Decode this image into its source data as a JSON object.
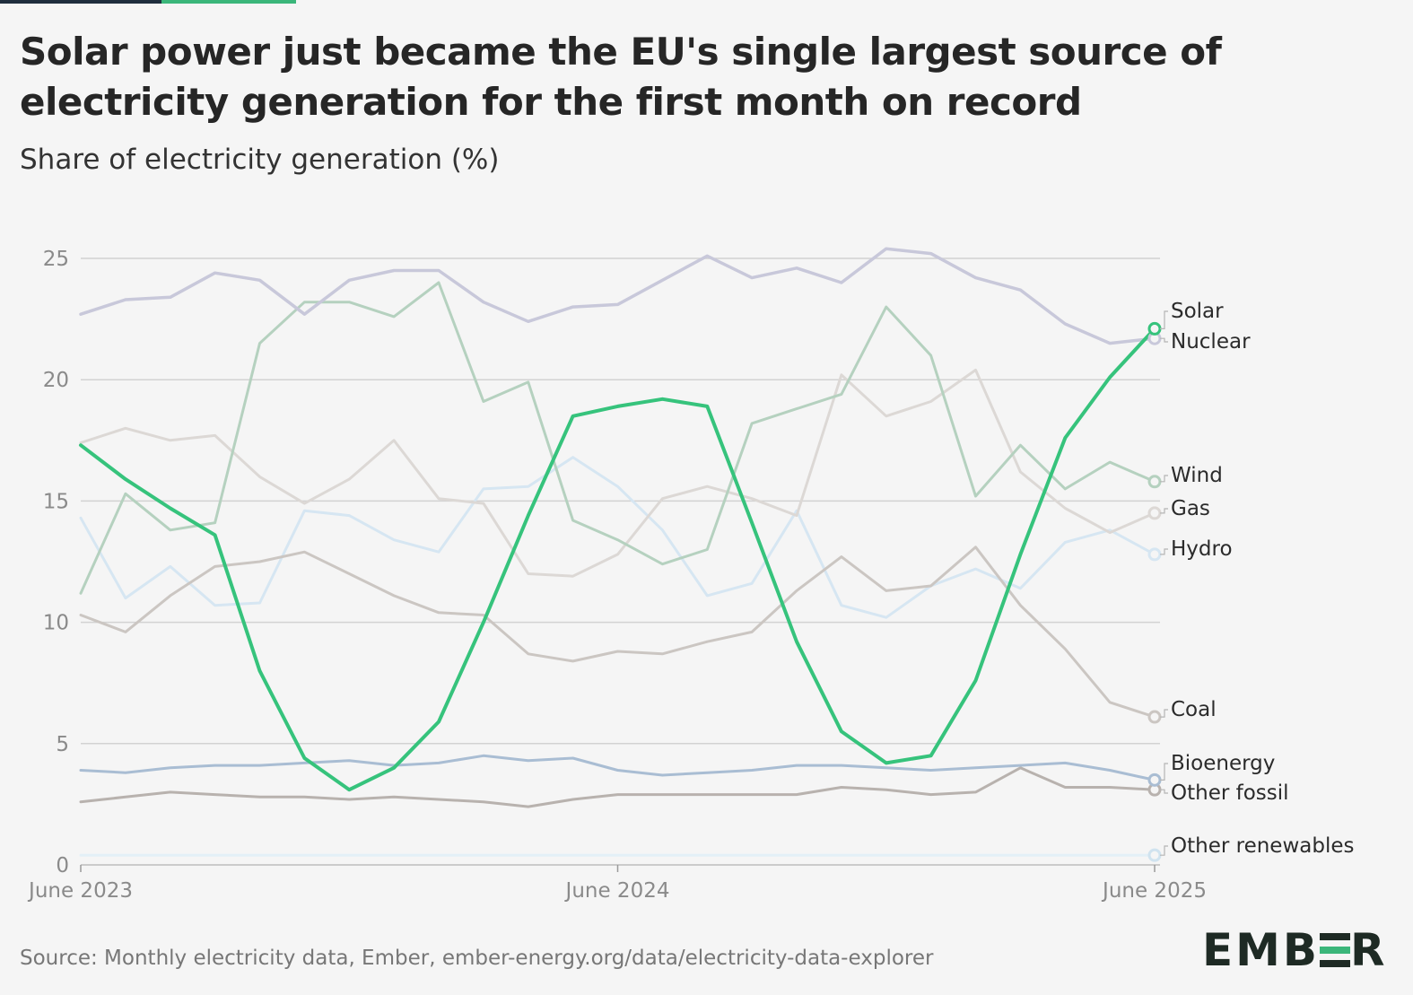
{
  "title": "Solar power just became the EU's single largest source of electricity generation for the first month on record",
  "subtitle": "Share of electricity generation (%)",
  "source": "Source: Monthly electricity data, Ember, ember-energy.org/data/electricity-data-explorer",
  "logo": {
    "left": "EMB",
    "right": "R"
  },
  "chart_data": {
    "type": "line",
    "x": [
      "2023-06",
      "2023-07",
      "2023-08",
      "2023-09",
      "2023-10",
      "2023-11",
      "2023-12",
      "2024-01",
      "2024-02",
      "2024-03",
      "2024-04",
      "2024-05",
      "2024-06",
      "2024-07",
      "2024-08",
      "2024-09",
      "2024-10",
      "2024-11",
      "2024-12",
      "2025-01",
      "2025-02",
      "2025-03",
      "2025-04",
      "2025-05",
      "2025-06"
    ],
    "x_tick_labels": [
      "June 2023",
      "June 2024",
      "June 2025"
    ],
    "y_ticks": [
      "0",
      "5",
      "10",
      "15",
      "20",
      "25"
    ],
    "ylim": [
      0,
      25
    ],
    "ylabel": "Share of electricity generation (%)",
    "grid": "horizontal",
    "legend": "direct labels at right end of lines",
    "series": [
      {
        "name": "Other renewables",
        "color": "#e3f0f7",
        "width": 3,
        "values": [
          0.4,
          0.4,
          0.4,
          0.4,
          0.4,
          0.4,
          0.4,
          0.4,
          0.4,
          0.4,
          0.4,
          0.4,
          0.4,
          0.4,
          0.4,
          0.4,
          0.4,
          0.4,
          0.4,
          0.4,
          0.4,
          0.4,
          0.4,
          0.4,
          0.4
        ]
      },
      {
        "name": "Other fossil",
        "color": "#b8b2ae",
        "width": 3,
        "values": [
          2.6,
          2.8,
          3.0,
          2.9,
          2.8,
          2.8,
          2.7,
          2.8,
          2.7,
          2.6,
          2.4,
          2.7,
          2.9,
          2.9,
          2.9,
          2.9,
          2.9,
          3.2,
          3.1,
          2.9,
          3.0,
          4.0,
          3.2,
          3.2,
          3.1
        ]
      },
      {
        "name": "Bioenergy",
        "color": "#a9bdd3",
        "width": 3,
        "values": [
          3.9,
          3.8,
          4.0,
          4.1,
          4.1,
          4.2,
          4.3,
          4.1,
          4.2,
          4.5,
          4.3,
          4.4,
          3.9,
          3.7,
          3.8,
          3.9,
          4.1,
          4.1,
          4.0,
          3.9,
          4.0,
          4.1,
          4.2,
          3.9,
          3.5
        ]
      },
      {
        "name": "Hydro",
        "color": "#d6e6f2",
        "width": 3,
        "values": [
          14.3,
          11.0,
          12.3,
          10.7,
          10.8,
          14.6,
          14.4,
          13.4,
          12.9,
          15.5,
          15.6,
          16.8,
          15.6,
          13.8,
          11.1,
          11.6,
          14.6,
          10.7,
          10.2,
          11.5,
          12.2,
          11.4,
          13.3,
          13.8,
          12.8
        ]
      },
      {
        "name": "Coal",
        "color": "#cbc6c2",
        "width": 3,
        "values": [
          10.3,
          9.6,
          11.1,
          12.3,
          12.5,
          12.9,
          12.0,
          11.1,
          10.4,
          10.3,
          8.7,
          8.4,
          8.8,
          8.7,
          9.2,
          9.6,
          11.3,
          12.7,
          11.3,
          11.5,
          13.1,
          10.7,
          8.9,
          6.7,
          6.1
        ]
      },
      {
        "name": "Gas",
        "color": "#dcd8d5",
        "width": 3,
        "values": [
          17.4,
          18.0,
          17.5,
          17.7,
          16.0,
          14.9,
          15.9,
          17.5,
          15.1,
          14.9,
          12.0,
          11.9,
          12.8,
          15.1,
          15.6,
          15.1,
          14.4,
          20.2,
          18.5,
          19.1,
          20.4,
          16.2,
          14.7,
          13.7,
          14.5
        ]
      },
      {
        "name": "Wind",
        "color": "#b5d1bf",
        "width": 3,
        "values": [
          11.2,
          15.3,
          13.8,
          14.1,
          21.5,
          23.2,
          23.2,
          22.6,
          24.0,
          19.1,
          19.9,
          14.2,
          13.4,
          12.4,
          13.0,
          18.2,
          18.8,
          19.4,
          23.0,
          21.0,
          15.2,
          17.3,
          15.5,
          16.6,
          15.8
        ]
      },
      {
        "name": "Nuclear",
        "color": "#c8c8da",
        "width": 3.5,
        "values": [
          22.7,
          23.3,
          23.4,
          24.4,
          24.1,
          22.7,
          24.1,
          24.5,
          24.5,
          23.2,
          22.4,
          23.0,
          23.1,
          24.1,
          25.1,
          24.2,
          24.6,
          24.0,
          25.4,
          25.2,
          24.2,
          23.7,
          22.3,
          21.5,
          21.7
        ]
      },
      {
        "name": "Solar",
        "color": "#36c37c",
        "width": 4,
        "values": [
          17.3,
          15.9,
          14.7,
          13.6,
          8.0,
          4.4,
          3.1,
          4.0,
          5.9,
          10.0,
          14.4,
          18.5,
          18.9,
          19.2,
          18.9,
          14.1,
          9.2,
          5.5,
          4.2,
          4.5,
          7.6,
          12.8,
          17.6,
          20.1,
          22.1
        ]
      }
    ],
    "labels": [
      {
        "series": "Solar",
        "text": "Solar"
      },
      {
        "series": "Nuclear",
        "text": "Nuclear"
      },
      {
        "series": "Wind",
        "text": "Wind"
      },
      {
        "series": "Gas",
        "text": "Gas"
      },
      {
        "series": "Hydro",
        "text": "Hydro"
      },
      {
        "series": "Coal",
        "text": "Coal"
      },
      {
        "series": "Bioenergy",
        "text": "Bioenergy"
      },
      {
        "series": "Other fossil",
        "text": "Other fossil"
      },
      {
        "series": "Other renewables",
        "text": "Other renewables"
      }
    ]
  }
}
